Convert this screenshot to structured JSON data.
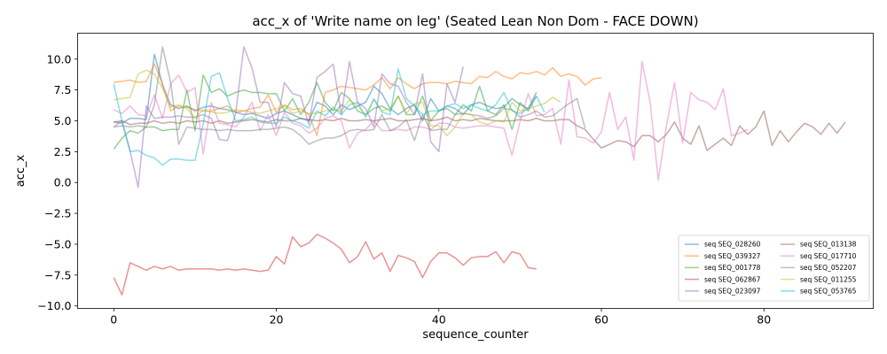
{
  "chart_data": {
    "type": "line",
    "title": "acc_x of 'Write name on leg' (Seated Lean Non Dom - FACE DOWN)",
    "xlabel": "sequence_counter",
    "ylabel": "acc_x",
    "xlim": [
      -4.45,
      93.45
    ],
    "ylim": [
      -10.2,
      12.1
    ],
    "xticks": [
      0,
      20,
      40,
      60,
      80
    ],
    "yticks": [
      -10.0,
      -7.5,
      -5.0,
      -2.5,
      0.0,
      2.5,
      5.0,
      7.5,
      10.0
    ],
    "xtick_labels": [
      "0",
      "20",
      "40",
      "60",
      "80"
    ],
    "ytick_labels": [
      "−10.0",
      "−7.5",
      "−5.0",
      "−2.5",
      "0.0",
      "2.5",
      "5.0",
      "7.5",
      "10.0"
    ],
    "grid": false,
    "legend_position": "lower-right",
    "legend_columns": 2,
    "line_alpha": 0.5,
    "series": [
      {
        "name": "seq SEQ_028260",
        "color": "#1f77b4",
        "values": [
          4.9,
          4.8,
          5.2,
          5.2,
          5.1,
          10.4,
          7.9,
          6.3,
          6.0,
          6.2,
          5.8,
          6.1,
          6.2,
          6.0,
          5.9,
          5.7,
          5.5,
          5.6,
          5.4,
          5.2,
          5.6,
          5.8,
          5.5,
          5.2,
          5.0,
          6.5,
          6.2,
          5.5,
          6.3,
          5.9,
          6.2,
          6.5,
          7.8,
          7.2,
          6.0,
          5.5,
          6.0,
          6.3,
          5.0,
          6.8,
          5.8,
          6.2,
          6.0,
          5.5,
          6.3,
          6.5,
          6.2,
          6.0,
          6.1,
          6.8,
          6.3,
          6.0,
          7.3
        ]
      },
      {
        "name": "seq SEQ_039327",
        "color": "#ff7f0e",
        "values": [
          8.1,
          8.2,
          8.3,
          8.1,
          8.2,
          9.6,
          8.0,
          5.8,
          6.2,
          6.1,
          5.9,
          5.8,
          5.8,
          6.0,
          6.2,
          5.7,
          5.8,
          6.0,
          6.1,
          7.1,
          5.7,
          6.3,
          5.9,
          6.0,
          5.5,
          3.8,
          7.3,
          7.5,
          7.8,
          7.7,
          7.6,
          7.5,
          7.9,
          8.5,
          7.6,
          8.5,
          8.0,
          7.6,
          8.0,
          8.1,
          8.1,
          8.0,
          8.2,
          8.1,
          8.0,
          8.6,
          8.5,
          9.0,
          8.6,
          8.4,
          8.9,
          8.8,
          9.0,
          8.7,
          9.3,
          8.6,
          8.8,
          8.6,
          7.9,
          8.4,
          8.5
        ]
      },
      {
        "name": "seq SEQ_001778",
        "color": "#2ca02c",
        "values": [
          2.7,
          3.6,
          4.2,
          4.0,
          4.5,
          4.5,
          4.2,
          4.3,
          4.3,
          7.5,
          4.2,
          8.7,
          7.3,
          7.6,
          7.0,
          7.3,
          7.5,
          7.3,
          7.3,
          7.2,
          7.2,
          5.8,
          6.8,
          5.5,
          6.5,
          8.1,
          6.5,
          5.8,
          7.3,
          6.8,
          5.8,
          5.5,
          6.0,
          6.2,
          5.8,
          7.0,
          5.5,
          5.5,
          7.0,
          5.0,
          5.8,
          6.0,
          5.5,
          6.3,
          5.8,
          7.8,
          5.8,
          5.5,
          6.3,
          4.3,
          6.5,
          5.8,
          7.0
        ]
      },
      {
        "name": "seq SEQ_062867",
        "color": "#d62728",
        "values": [
          -7.7,
          -9.1,
          -6.5,
          -6.8,
          -7.1,
          -6.8,
          -7.0,
          -6.8,
          -7.1,
          -7.0,
          -7.0,
          -7.0,
          -7.0,
          -7.1,
          -7.0,
          -7.1,
          -7.0,
          -7.1,
          -7.2,
          -7.1,
          -6.0,
          -6.6,
          -4.4,
          -5.2,
          -4.9,
          -4.2,
          -4.5,
          -4.9,
          -5.4,
          -6.5,
          -6.0,
          -4.8,
          -6.2,
          -5.7,
          -7.2,
          -5.9,
          -6.1,
          -6.4,
          -7.7,
          -6.4,
          -5.7,
          -5.7,
          -6.1,
          -6.7,
          -6.1,
          -6.0,
          -6.0,
          -5.6,
          -6.5,
          -5.6,
          -5.8,
          -6.9,
          -7.0
        ]
      },
      {
        "name": "seq SEQ_023097",
        "color": "#9467bd",
        "values": [
          4.5,
          5.0,
          2.6,
          -0.4,
          6.2,
          5.2,
          5.3,
          5.3,
          5.4,
          5.3,
          5.3,
          5.5,
          5.2,
          3.5,
          3.4,
          5.6,
          11.0,
          9.3,
          6.5,
          6.5,
          4.5,
          8.1,
          7.2,
          7.0,
          4.7,
          8.5,
          9.0,
          9.6,
          5.5,
          9.8,
          6.5,
          6.0,
          4.5,
          8.8,
          8.0,
          7.8,
          6.5,
          5.5,
          8.8,
          3.3,
          2.5,
          8.0,
          6.5,
          9.4
        ]
      },
      {
        "name": "seq SEQ_013138",
        "color": "#8c564b",
        "values": [
          4.9,
          5.0,
          4.7,
          4.8,
          4.8,
          5.0,
          4.8,
          4.9,
          4.8,
          5.0,
          4.9,
          5.0,
          4.8,
          5.0,
          4.8,
          4.9,
          5.0,
          5.1,
          5.0,
          4.9,
          5.1,
          5.0,
          5.0,
          5.2,
          5.1,
          5.0,
          5.1,
          5.0,
          5.2,
          5.0,
          5.0,
          5.1,
          5.0,
          5.1,
          5.2,
          5.0,
          5.0,
          5.1,
          5.2,
          5.0,
          5.1,
          5.3,
          5.0,
          5.1,
          5.0,
          5.2,
          5.1,
          5.0,
          5.0,
          5.0,
          5.1,
          5.0,
          5.2,
          5.0,
          5.0,
          5.1,
          5.1,
          4.6,
          4.3,
          3.5,
          2.8,
          3.1,
          3.4,
          3.3,
          2.9,
          3.8,
          3.8,
          3.3,
          3.9,
          4.9,
          3.6,
          3.1,
          4.6,
          2.6,
          3.1,
          3.6,
          3.0,
          4.6,
          3.9,
          4.5,
          5.8,
          3.0,
          4.2,
          3.3,
          4.1,
          4.8,
          4.5,
          3.9,
          4.8,
          4.0,
          4.9
        ]
      },
      {
        "name": "seq SEQ_017710",
        "color": "#e377c2",
        "values": [
          5.9,
          5.6,
          6.2,
          5.5,
          5.4,
          7.1,
          5.2,
          8.0,
          8.7,
          7.3,
          7.7,
          2.3,
          6.5,
          4.8,
          4.7,
          4.5,
          5.3,
          6.5,
          4.2,
          5.5,
          3.8,
          5.7,
          4.8,
          4.6,
          4.0,
          4.4,
          5.2,
          5.4,
          5.0,
          2.8,
          4.0,
          4.3,
          5.0,
          4.2,
          4.2,
          4.3,
          4.2,
          4.5,
          4.5,
          4.3,
          4.8,
          4.8,
          4.5,
          4.4,
          4.5,
          4.6,
          4.6,
          4.5,
          4.4,
          2.2,
          5.0,
          7.2,
          5.4,
          5.5,
          6.0,
          3.1,
          8.3,
          3.7,
          3.6,
          3.2,
          4.1,
          7.3,
          4.3,
          5.3,
          1.8,
          9.8,
          6.5,
          0.2,
          4.6,
          8.1,
          3.2,
          7.3,
          6.7,
          6.5,
          5.9,
          7.6,
          3.8,
          4.0,
          4.3
        ]
      },
      {
        "name": "seq SEQ_052207",
        "color": "#7f7f7f",
        "values": [
          4.5,
          4.6,
          4.5,
          4.6,
          4.5,
          6.3,
          11.0,
          8.1,
          3.1,
          4.5,
          4.4,
          4.3,
          4.3,
          4.2,
          4.3,
          4.2,
          4.2,
          4.2,
          4.3,
          4.3,
          4.4,
          4.5,
          4.3,
          3.8,
          3.1,
          3.4,
          3.6,
          3.6,
          3.8,
          4.2,
          4.3,
          4.2,
          4.3,
          5.5,
          4.2,
          4.5,
          5.1,
          3.4,
          5.5,
          4.2,
          4.3,
          4.3,
          5.5,
          5.6,
          5.5,
          5.4,
          5.2,
          5.4,
          6.0,
          5.9,
          5.3,
          5.5,
          5.8,
          5.3,
          5.4,
          5.9,
          6.4,
          6.8,
          4.4
        ]
      },
      {
        "name": "seq SEQ_011255",
        "color": "#bcbd22",
        "values": [
          6.7,
          6.8,
          6.9,
          8.8,
          9.1,
          8.8,
          7.6,
          6.1,
          6.3,
          6.0,
          5.2,
          5.9,
          5.7,
          5.6,
          5.7,
          5.9,
          5.8,
          5.7,
          5.6,
          5.8,
          6.0,
          6.2,
          5.6,
          5.8,
          5.6,
          5.6,
          5.8,
          5.9,
          5.8,
          6.7,
          6.2,
          5.5,
          6.7,
          5.8,
          6.0,
          7.0,
          5.6,
          6.4,
          6.5,
          4.6,
          4.6,
          3.8,
          4.5,
          5.6,
          5.5,
          4.9,
          4.7,
          5.0,
          4.9,
          6.5,
          5.8,
          6.0,
          6.2,
          6.4,
          6.9,
          6.5
        ]
      },
      {
        "name": "seq SEQ_053765",
        "color": "#17becf",
        "values": [
          8.0,
          5.0,
          2.5,
          2.6,
          2.2,
          2.0,
          1.4,
          1.9,
          1.9,
          1.8,
          1.8,
          4.7,
          8.6,
          8.9,
          6.8,
          5.0,
          5.1,
          5.3,
          4.9,
          4.8,
          4.8,
          5.3,
          5.0,
          4.8,
          4.4,
          5.8,
          5.4,
          6.1,
          5.5,
          6.3,
          6.5,
          5.3,
          6.8,
          5.7,
          5.5,
          9.2,
          6.8,
          6.2,
          5.5,
          5.8,
          5.8,
          6.2,
          6.4,
          6.0,
          6.3,
          6.0,
          5.8,
          6.3,
          7.3,
          5.8,
          5.6,
          6.0,
          7.0,
          5.7
        ]
      }
    ]
  }
}
